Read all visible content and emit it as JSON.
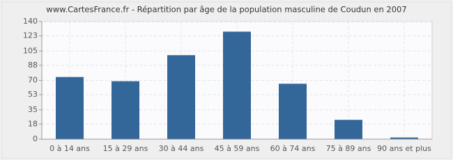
{
  "chart_data": {
    "type": "bar",
    "title": "www.CartesFrance.fr - Répartition par âge de la population masculine de Coudun en 2007",
    "categories": [
      "0 à 14 ans",
      "15 à 29 ans",
      "30 à 44 ans",
      "45 à 59 ans",
      "60 à 74 ans",
      "75 à 89 ans",
      "90 ans et plus"
    ],
    "values": [
      74,
      69,
      100,
      128,
      66,
      23,
      2
    ],
    "color": "#336699",
    "ylim": [
      0,
      140
    ],
    "yticks": [
      0,
      18,
      35,
      53,
      70,
      88,
      105,
      123,
      140
    ],
    "grid": true
  }
}
